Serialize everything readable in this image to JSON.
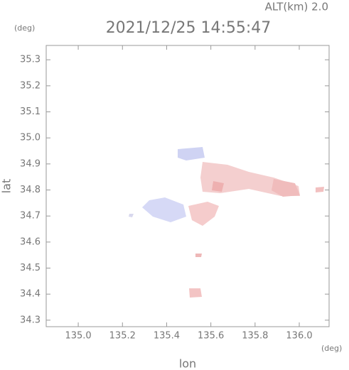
{
  "chart_data": {
    "type": "map",
    "title": "2021/12/25 14:55:47",
    "subtitle": "ALT(km)  2.0",
    "x_label": "lon",
    "y_label": "lat",
    "x_unit": "(deg)",
    "y_unit": "(deg)",
    "xlim": [
      134.855,
      136.135
    ],
    "ylim": [
      34.275,
      35.355
    ],
    "xticks": [
      {
        "value": 135,
        "label": "135.0"
      },
      135.2,
      135.4,
      135.6,
      135.8,
      {
        "value": 136,
        "label": "136.0"
      }
    ],
    "yticks": [
      34.3,
      34.4,
      34.5,
      34.6,
      34.7,
      34.8,
      34.9,
      {
        "value": 35,
        "label": "35.0"
      },
      35.1,
      35.2,
      35.3
    ]
  }
}
